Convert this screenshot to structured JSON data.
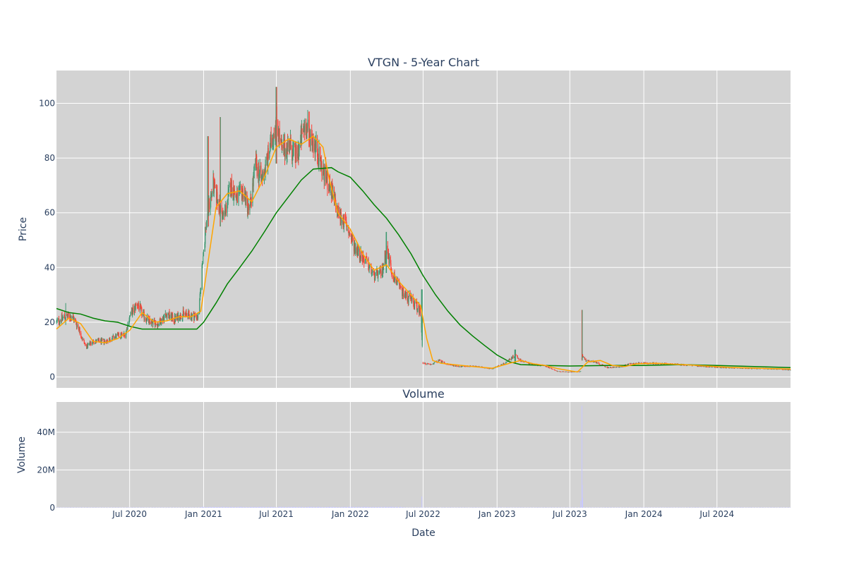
{
  "chart_data": [
    {
      "type": "candlestick",
      "title": "VTGN - 5-Year Chart",
      "xlabel": "",
      "ylabel": "Price",
      "x_range": [
        "2020-01-01",
        "2024-12-31"
      ],
      "ylim": [
        -4,
        112
      ],
      "y_ticks": [
        0,
        20,
        40,
        60,
        80,
        100
      ],
      "y_tick_labels": [
        "0",
        "20",
        "40",
        "60",
        "80",
        "100"
      ],
      "x_gridlines": [
        "2020-07-01",
        "2021-01-01",
        "2021-07-01",
        "2022-01-01",
        "2022-07-01",
        "2023-01-01",
        "2023-07-01",
        "2024-01-01",
        "2024-07-01"
      ],
      "grid": true,
      "background": "#d3d3d3",
      "colors": {
        "increasing": "#3d9970",
        "decreasing": "#ff4136",
        "ma_short": "#ffa500",
        "ma_long": "#008000"
      },
      "price_path": [
        [
          "2020-01-01",
          20
        ],
        [
          "2020-01-20",
          22
        ],
        [
          "2020-02-10",
          22
        ],
        [
          "2020-02-25",
          18
        ],
        [
          "2020-03-05",
          14
        ],
        [
          "2020-03-15",
          11
        ],
        [
          "2020-04-01",
          13
        ],
        [
          "2020-05-01",
          13
        ],
        [
          "2020-06-01",
          15
        ],
        [
          "2020-06-20",
          15.5
        ],
        [
          "2020-07-01",
          22
        ],
        [
          "2020-07-20",
          27
        ],
        [
          "2020-08-01",
          23
        ],
        [
          "2020-08-20",
          20
        ],
        [
          "2020-09-10",
          19.5
        ],
        [
          "2020-10-01",
          23
        ],
        [
          "2020-10-20",
          21
        ],
        [
          "2020-11-10",
          23
        ],
        [
          "2020-12-20",
          22
        ],
        [
          "2020-12-28",
          40
        ],
        [
          "2021-01-10",
          60
        ],
        [
          "2021-01-25",
          70
        ],
        [
          "2021-02-10",
          62
        ],
        [
          "2021-02-20",
          58
        ],
        [
          "2021-03-10",
          70
        ],
        [
          "2021-03-25",
          65
        ],
        [
          "2021-04-10",
          68
        ],
        [
          "2021-04-25",
          60
        ],
        [
          "2021-05-10",
          78
        ],
        [
          "2021-05-25",
          72
        ],
        [
          "2021-06-10",
          80
        ],
        [
          "2021-07-01",
          95
        ],
        [
          "2021-07-15",
          82
        ],
        [
          "2021-08-01",
          85
        ],
        [
          "2021-08-20",
          80
        ],
        [
          "2021-09-10",
          92
        ],
        [
          "2021-09-25",
          88
        ],
        [
          "2021-10-10",
          83
        ],
        [
          "2021-10-25",
          75
        ],
        [
          "2021-11-10",
          70
        ],
        [
          "2021-12-01",
          60
        ],
        [
          "2021-12-20",
          56
        ],
        [
          "2022-01-10",
          48
        ],
        [
          "2022-01-25",
          45
        ],
        [
          "2022-02-10",
          42
        ],
        [
          "2022-03-01",
          37
        ],
        [
          "2022-03-20",
          38
        ],
        [
          "2022-04-01",
          47
        ],
        [
          "2022-04-15",
          38
        ],
        [
          "2022-05-10",
          31
        ],
        [
          "2022-06-01",
          28
        ],
        [
          "2022-06-25",
          24
        ],
        [
          "2022-07-01",
          5
        ],
        [
          "2022-07-20",
          4.5
        ],
        [
          "2022-08-10",
          6
        ],
        [
          "2022-09-01",
          4.5
        ],
        [
          "2022-10-01",
          3.8
        ],
        [
          "2022-11-01",
          4
        ],
        [
          "2022-12-20",
          3
        ],
        [
          "2023-01-20",
          5
        ],
        [
          "2023-02-15",
          8
        ],
        [
          "2023-03-01",
          6
        ],
        [
          "2023-04-01",
          4.5
        ],
        [
          "2023-05-01",
          4
        ],
        [
          "2023-06-01",
          2
        ],
        [
          "2023-07-01",
          1.8
        ],
        [
          "2023-07-28",
          2
        ],
        [
          "2023-08-01",
          8
        ],
        [
          "2023-08-10",
          6
        ],
        [
          "2023-09-01",
          5.5
        ],
        [
          "2023-10-01",
          3.5
        ],
        [
          "2023-11-01",
          3.5
        ],
        [
          "2023-12-01",
          5
        ],
        [
          "2024-01-01",
          5
        ],
        [
          "2024-03-01",
          4.8
        ],
        [
          "2024-05-01",
          4.2
        ],
        [
          "2024-07-01",
          3.5
        ],
        [
          "2024-09-01",
          3.2
        ],
        [
          "2024-11-01",
          3
        ],
        [
          "2024-12-31",
          2.6
        ]
      ],
      "spikes": [
        [
          "2020-01-25",
          27,
          19
        ],
        [
          "2021-01-12",
          88,
          55
        ],
        [
          "2021-02-12",
          95,
          55
        ],
        [
          "2021-07-01",
          106,
          78
        ],
        [
          "2021-09-20",
          97,
          84
        ],
        [
          "2022-04-01",
          53,
          38
        ],
        [
          "2022-06-28",
          32,
          22
        ],
        [
          "2023-02-15",
          10,
          5
        ],
        [
          "2023-07-31",
          24.5,
          6
        ]
      ],
      "ma_short": [
        [
          "2020-01-01",
          17.5
        ],
        [
          "2020-02-01",
          21.5
        ],
        [
          "2020-03-01",
          19.5
        ],
        [
          "2020-04-01",
          13
        ],
        [
          "2020-05-01",
          12.5
        ],
        [
          "2020-06-01",
          14
        ],
        [
          "2020-07-01",
          17
        ],
        [
          "2020-08-01",
          23.5
        ],
        [
          "2020-09-01",
          20
        ],
        [
          "2020-10-01",
          20.5
        ],
        [
          "2020-11-01",
          22
        ],
        [
          "2020-12-01",
          22
        ],
        [
          "2020-12-25",
          24
        ],
        [
          "2021-01-10",
          40
        ],
        [
          "2021-02-01",
          62
        ],
        [
          "2021-03-01",
          67
        ],
        [
          "2021-04-01",
          68
        ],
        [
          "2021-05-01",
          64
        ],
        [
          "2021-06-01",
          73
        ],
        [
          "2021-07-01",
          84
        ],
        [
          "2021-08-01",
          87
        ],
        [
          "2021-09-01",
          85
        ],
        [
          "2021-10-01",
          88
        ],
        [
          "2021-10-25",
          84
        ],
        [
          "2021-11-10",
          72
        ],
        [
          "2021-12-01",
          60
        ],
        [
          "2022-01-01",
          54
        ],
        [
          "2022-02-01",
          45
        ],
        [
          "2022-03-01",
          39
        ],
        [
          "2022-04-01",
          41
        ],
        [
          "2022-05-01",
          35
        ],
        [
          "2022-06-01",
          30
        ],
        [
          "2022-06-25",
          26
        ],
        [
          "2022-07-10",
          14
        ],
        [
          "2022-07-25",
          6
        ],
        [
          "2022-08-15",
          5
        ],
        [
          "2022-09-15",
          4.5
        ],
        [
          "2022-11-01",
          3.8
        ],
        [
          "2022-12-20",
          3.2
        ],
        [
          "2023-02-01",
          5
        ],
        [
          "2023-03-01",
          6
        ],
        [
          "2023-04-01",
          4.8
        ],
        [
          "2023-05-01",
          4.2
        ],
        [
          "2023-06-01",
          3
        ],
        [
          "2023-07-20",
          1.8
        ],
        [
          "2023-08-15",
          5.5
        ],
        [
          "2023-09-15",
          6
        ],
        [
          "2023-10-15",
          4.2
        ],
        [
          "2023-11-15",
          3.8
        ],
        [
          "2023-12-15",
          4.8
        ],
        [
          "2024-02-01",
          5
        ],
        [
          "2024-05-01",
          4.3
        ],
        [
          "2024-08-01",
          3.5
        ],
        [
          "2024-11-01",
          3.1
        ],
        [
          "2024-12-31",
          2.9
        ]
      ],
      "ma_long": [
        [
          "2020-01-01",
          25
        ],
        [
          "2020-02-01",
          23.5
        ],
        [
          "2020-03-01",
          23
        ],
        [
          "2020-04-01",
          21.5
        ],
        [
          "2020-05-01",
          20.5
        ],
        [
          "2020-06-01",
          20
        ],
        [
          "2020-07-01",
          18.5
        ],
        [
          "2020-08-01",
          17.5
        ],
        [
          "2020-09-01",
          17.5
        ],
        [
          "2020-12-15",
          17.5
        ],
        [
          "2021-01-01",
          20
        ],
        [
          "2021-02-01",
          27
        ],
        [
          "2021-03-01",
          34
        ],
        [
          "2021-04-01",
          40
        ],
        [
          "2021-05-01",
          46
        ],
        [
          "2021-06-01",
          53
        ],
        [
          "2021-07-01",
          60
        ],
        [
          "2021-08-01",
          66
        ],
        [
          "2021-09-01",
          72
        ],
        [
          "2021-10-01",
          76
        ],
        [
          "2021-11-15",
          76.5
        ],
        [
          "2021-12-01",
          75
        ],
        [
          "2022-01-01",
          73
        ],
        [
          "2022-02-01",
          68
        ],
        [
          "2022-03-01",
          63
        ],
        [
          "2022-04-01",
          58
        ],
        [
          "2022-05-01",
          52
        ],
        [
          "2022-06-01",
          45
        ],
        [
          "2022-07-01",
          37
        ],
        [
          "2022-08-01",
          30
        ],
        [
          "2022-09-01",
          24
        ],
        [
          "2022-10-01",
          19
        ],
        [
          "2022-11-01",
          15
        ],
        [
          "2022-12-01",
          11.5
        ],
        [
          "2023-01-01",
          8
        ],
        [
          "2023-02-01",
          5.5
        ],
        [
          "2023-03-01",
          4.5
        ],
        [
          "2023-05-01",
          4.2
        ],
        [
          "2023-07-01",
          4
        ],
        [
          "2023-10-01",
          4.2
        ],
        [
          "2024-01-01",
          4.2
        ],
        [
          "2024-04-01",
          4.5
        ],
        [
          "2024-07-01",
          4.2
        ],
        [
          "2024-10-01",
          3.8
        ],
        [
          "2024-12-31",
          3.4
        ]
      ]
    },
    {
      "type": "bar",
      "title": "Volume",
      "xlabel": "Date",
      "ylabel": "Volume",
      "x_range": [
        "2020-01-01",
        "2024-12-31"
      ],
      "ylim": [
        0,
        56000000
      ],
      "y_ticks": [
        0,
        20000000,
        40000000
      ],
      "y_tick_labels": [
        "0",
        "20M",
        "40M"
      ],
      "x_ticks": [
        "2020-07-01",
        "2021-01-01",
        "2021-07-01",
        "2022-01-01",
        "2022-07-01",
        "2023-01-01",
        "2023-07-01",
        "2024-01-01",
        "2024-07-01"
      ],
      "x_tick_labels": [
        "Jul 2020",
        "Jan 2021",
        "Jul 2021",
        "Jan 2022",
        "Jul 2022",
        "Jan 2023",
        "Jul 2023",
        "Jan 2024",
        "Jul 2024"
      ],
      "grid": true,
      "background": "#d3d3d3",
      "bar_color": "#c8c8ff",
      "notable_bars": [
        [
          "2022-06-28",
          6000000
        ],
        [
          "2023-07-31",
          54000000
        ],
        [
          "2023-08-01",
          12000000
        ]
      ]
    }
  ]
}
